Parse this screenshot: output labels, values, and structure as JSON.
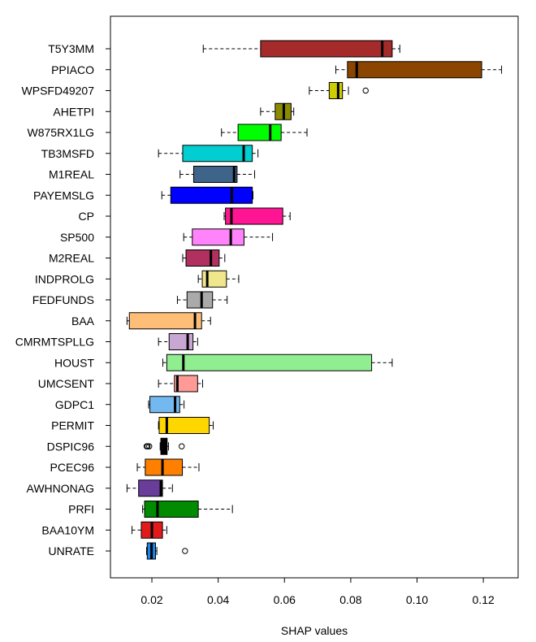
{
  "chart_data": {
    "type": "boxplot",
    "orientation": "horizontal",
    "title": "",
    "xlabel": "SHAP values",
    "ylabel": "",
    "xlim": [
      0.0075,
      0.1305
    ],
    "xticks": [
      0.02,
      0.04,
      0.06,
      0.08,
      0.1,
      0.12
    ],
    "xtick_labels": [
      "0.02",
      "0.04",
      "0.06",
      "0.08",
      "0.10",
      "0.12"
    ],
    "grid": false,
    "categories": [
      "T5Y3MM",
      "PPIACO",
      "WPSFD49207",
      "AHETPI",
      "W875RX1LG",
      "TB3MSFD",
      "M1REAL",
      "PAYEMSLG",
      "CP",
      "SP500",
      "M2REAL",
      "INDPROLG",
      "FEDFUNDS",
      "BAA",
      "CMRMTSPLLG",
      "HOUST",
      "UMCSENT",
      "GDPC1",
      "PERMIT",
      "DSPIC96",
      "PCEC96",
      "AWHNONAG",
      "PRFI",
      "BAA10YM",
      "UNRATE"
    ],
    "series": [
      {
        "name": "T5Y3MM",
        "color": "#A52A2A",
        "whisker_low": 0.0355,
        "q1": 0.0528,
        "median": 0.0895,
        "q3": 0.0925,
        "whisker_high": 0.0948,
        "outliers": []
      },
      {
        "name": "PPIACO",
        "color": "#8B4500",
        "whisker_low": 0.0755,
        "q1": 0.079,
        "median": 0.0818,
        "q3": 0.1195,
        "whisker_high": 0.1255,
        "outliers": []
      },
      {
        "name": "WPSFD49207",
        "color": "#CDCD00",
        "whisker_low": 0.0675,
        "q1": 0.0735,
        "median": 0.0762,
        "q3": 0.0775,
        "whisker_high": 0.0793,
        "outliers": [
          0.0845
        ]
      },
      {
        "name": "AHETPI",
        "color": "#8B8B00",
        "whisker_low": 0.0528,
        "q1": 0.0572,
        "median": 0.0598,
        "q3": 0.062,
        "whisker_high": 0.0628,
        "outliers": []
      },
      {
        "name": "W875RX1LG",
        "color": "#00FF00",
        "whisker_low": 0.041,
        "q1": 0.046,
        "median": 0.0557,
        "q3": 0.059,
        "whisker_high": 0.0668,
        "outliers": []
      },
      {
        "name": "TB3MSFD",
        "color": "#00CED1",
        "whisker_low": 0.022,
        "q1": 0.0293,
        "median": 0.0477,
        "q3": 0.0503,
        "whisker_high": 0.052,
        "outliers": []
      },
      {
        "name": "M1REAL",
        "color": "#3E648A",
        "whisker_low": 0.0285,
        "q1": 0.0326,
        "median": 0.0448,
        "q3": 0.0457,
        "whisker_high": 0.051,
        "outliers": []
      },
      {
        "name": "PAYEMSLG",
        "color": "#0000FF",
        "whisker_low": 0.023,
        "q1": 0.0257,
        "median": 0.0441,
        "q3": 0.0503,
        "whisker_high": 0.0505,
        "outliers": []
      },
      {
        "name": "CP",
        "color": "#FF1493",
        "whisker_low": 0.0418,
        "q1": 0.0422,
        "median": 0.044,
        "q3": 0.0595,
        "whisker_high": 0.0617,
        "outliers": []
      },
      {
        "name": "SP500",
        "color": "#FF83FA",
        "whisker_low": 0.0296,
        "q1": 0.0322,
        "median": 0.0438,
        "q3": 0.0478,
        "whisker_high": 0.0564,
        "outliers": []
      },
      {
        "name": "M2REAL",
        "color": "#B03060",
        "whisker_low": 0.0293,
        "q1": 0.0303,
        "median": 0.0378,
        "q3": 0.0403,
        "whisker_high": 0.042,
        "outliers": []
      },
      {
        "name": "INDPROLG",
        "color": "#F0E68C",
        "whisker_low": 0.034,
        "q1": 0.0352,
        "median": 0.0367,
        "q3": 0.0425,
        "whisker_high": 0.0462,
        "outliers": []
      },
      {
        "name": "FEDFUNDS",
        "color": "#AAAAAA",
        "whisker_low": 0.0277,
        "q1": 0.0306,
        "median": 0.035,
        "q3": 0.0383,
        "whisker_high": 0.0427,
        "outliers": []
      },
      {
        "name": "BAA",
        "color": "#FFBE78",
        "whisker_low": 0.0125,
        "q1": 0.0132,
        "median": 0.033,
        "q3": 0.035,
        "whisker_high": 0.0377,
        "outliers": []
      },
      {
        "name": "CMRMTSPLLG",
        "color": "#C8A7D2",
        "whisker_low": 0.022,
        "q1": 0.0252,
        "median": 0.0308,
        "q3": 0.0324,
        "whisker_high": 0.0338,
        "outliers": []
      },
      {
        "name": "HOUST",
        "color": "#90EE90",
        "whisker_low": 0.0233,
        "q1": 0.0245,
        "median": 0.0295,
        "q3": 0.0863,
        "whisker_high": 0.0925,
        "outliers": []
      },
      {
        "name": "UMCSENT",
        "color": "#FF9A96",
        "whisker_low": 0.022,
        "q1": 0.0268,
        "median": 0.0277,
        "q3": 0.0338,
        "whisker_high": 0.0353,
        "outliers": []
      },
      {
        "name": "GDPC1",
        "color": "#73B9F0",
        "whisker_low": 0.019,
        "q1": 0.0194,
        "median": 0.027,
        "q3": 0.0284,
        "whisker_high": 0.0297,
        "outliers": []
      },
      {
        "name": "PERMIT",
        "color": "#FFD700",
        "whisker_low": 0.022,
        "q1": 0.0222,
        "median": 0.0245,
        "q3": 0.0373,
        "whisker_high": 0.0385,
        "outliers": []
      },
      {
        "name": "DSPIC96",
        "color": "#000000",
        "whisker_low": 0.0225,
        "q1": 0.0227,
        "median": 0.0238,
        "q3": 0.0246,
        "whisker_high": 0.025,
        "outliers": [
          0.0192,
          0.0187,
          0.0184,
          0.029
        ]
      },
      {
        "name": "PCEC96",
        "color": "#FF7F00",
        "whisker_low": 0.0156,
        "q1": 0.018,
        "median": 0.0232,
        "q3": 0.0292,
        "whisker_high": 0.0342,
        "outliers": []
      },
      {
        "name": "AWHNONAG",
        "color": "#6A3D9A",
        "whisker_low": 0.0125,
        "q1": 0.016,
        "median": 0.0227,
        "q3": 0.0232,
        "whisker_high": 0.0262,
        "outliers": []
      },
      {
        "name": "PRFI",
        "color": "#008B00",
        "whisker_low": 0.0172,
        "q1": 0.0178,
        "median": 0.0217,
        "q3": 0.034,
        "whisker_high": 0.0443,
        "outliers": []
      },
      {
        "name": "BAA10YM",
        "color": "#E31A1C",
        "whisker_low": 0.014,
        "q1": 0.0168,
        "median": 0.02,
        "q3": 0.0232,
        "whisker_high": 0.0245,
        "outliers": []
      },
      {
        "name": "UNRATE",
        "color": "#1C86EE",
        "whisker_low": 0.0184,
        "q1": 0.0186,
        "median": 0.0199,
        "q3": 0.0211,
        "whisker_high": 0.0215,
        "outliers": [
          0.03
        ]
      }
    ]
  }
}
